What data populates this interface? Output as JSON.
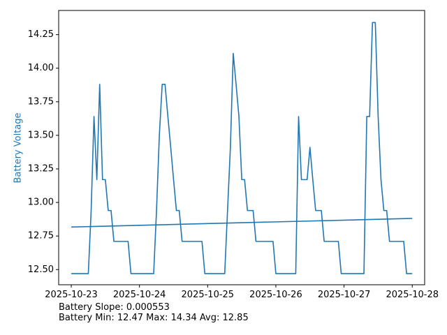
{
  "chart_data": {
    "type": "line",
    "xlabel": "",
    "ylabel": "Battery Voltage",
    "ylabel_color": "#1f77b4",
    "x_ticks": [
      "2025-10-23",
      "2025-10-24",
      "2025-10-25",
      "2025-10-26",
      "2025-10-27",
      "2025-10-28"
    ],
    "y_ticks": [
      "12.50",
      "12.75",
      "13.00",
      "13.25",
      "13.50",
      "13.75",
      "14.00",
      "14.25"
    ],
    "xlim_days": [
      "2025-10-22T19:34",
      "2025-10-28T04:22"
    ],
    "ylim": [
      12.387,
      14.43
    ],
    "grid": false,
    "series": [
      {
        "color": "#1f77b4",
        "points": [
          [
            "2025-10-23T00:00",
            12.47
          ],
          [
            "2025-10-23T06:00",
            12.47
          ],
          [
            "2025-10-23T07:00",
            12.94
          ],
          [
            "2025-10-23T08:00",
            13.64
          ],
          [
            "2025-10-23T09:00",
            13.17
          ],
          [
            "2025-10-23T10:00",
            13.88
          ],
          [
            "2025-10-23T11:00",
            13.17
          ],
          [
            "2025-10-23T12:00",
            13.17
          ],
          [
            "2025-10-23T13:00",
            12.94
          ],
          [
            "2025-10-23T14:00",
            12.94
          ],
          [
            "2025-10-23T15:00",
            12.71
          ],
          [
            "2025-10-23T20:00",
            12.71
          ],
          [
            "2025-10-23T21:00",
            12.47
          ],
          [
            "2025-10-24T05:00",
            12.47
          ],
          [
            "2025-10-24T06:00",
            12.94
          ],
          [
            "2025-10-24T07:00",
            13.5
          ],
          [
            "2025-10-24T08:00",
            13.88
          ],
          [
            "2025-10-24T09:00",
            13.88
          ],
          [
            "2025-10-24T10:00",
            13.64
          ],
          [
            "2025-10-24T11:00",
            13.41
          ],
          [
            "2025-10-24T12:00",
            13.17
          ],
          [
            "2025-10-24T13:00",
            12.94
          ],
          [
            "2025-10-24T14:00",
            12.94
          ],
          [
            "2025-10-24T15:00",
            12.71
          ],
          [
            "2025-10-24T22:00",
            12.71
          ],
          [
            "2025-10-24T23:00",
            12.47
          ],
          [
            "2025-10-25T06:00",
            12.47
          ],
          [
            "2025-10-25T07:00",
            12.94
          ],
          [
            "2025-10-25T08:00",
            13.41
          ],
          [
            "2025-10-25T09:00",
            14.11
          ],
          [
            "2025-10-25T10:00",
            13.88
          ],
          [
            "2025-10-25T11:00",
            13.64
          ],
          [
            "2025-10-25T12:00",
            13.17
          ],
          [
            "2025-10-25T13:00",
            13.17
          ],
          [
            "2025-10-25T14:00",
            12.94
          ],
          [
            "2025-10-25T16:00",
            12.94
          ],
          [
            "2025-10-25T17:00",
            12.71
          ],
          [
            "2025-10-25T23:00",
            12.71
          ],
          [
            "2025-10-26T00:00",
            12.47
          ],
          [
            "2025-10-26T07:00",
            12.47
          ],
          [
            "2025-10-26T08:00",
            13.64
          ],
          [
            "2025-10-26T09:00",
            13.17
          ],
          [
            "2025-10-26T11:00",
            13.17
          ],
          [
            "2025-10-26T12:00",
            13.41
          ],
          [
            "2025-10-26T13:00",
            13.17
          ],
          [
            "2025-10-26T14:00",
            12.94
          ],
          [
            "2025-10-26T16:00",
            12.94
          ],
          [
            "2025-10-26T17:00",
            12.71
          ],
          [
            "2025-10-26T22:00",
            12.71
          ],
          [
            "2025-10-26T23:00",
            12.47
          ],
          [
            "2025-10-27T07:00",
            12.47
          ],
          [
            "2025-10-27T08:00",
            13.64
          ],
          [
            "2025-10-27T09:00",
            13.64
          ],
          [
            "2025-10-27T10:00",
            14.34
          ],
          [
            "2025-10-27T11:00",
            14.34
          ],
          [
            "2025-10-27T12:00",
            13.64
          ],
          [
            "2025-10-27T13:00",
            13.17
          ],
          [
            "2025-10-27T14:00",
            12.94
          ],
          [
            "2025-10-27T15:00",
            12.94
          ],
          [
            "2025-10-27T16:00",
            12.71
          ],
          [
            "2025-10-27T21:00",
            12.71
          ],
          [
            "2025-10-27T22:00",
            12.47
          ],
          [
            "2025-10-28T00:00",
            12.47
          ]
        ]
      },
      {
        "color": "#1f77b4",
        "points": [
          [
            "2025-10-23T00:00",
            12.817
          ],
          [
            "2025-10-28T00:00",
            12.881
          ]
        ]
      }
    ]
  },
  "stats": {
    "slope_line": "Battery Slope: 0.000553",
    "minmax_line": "Battery Min: 12.47 Max: 14.34 Avg: 12.85"
  }
}
